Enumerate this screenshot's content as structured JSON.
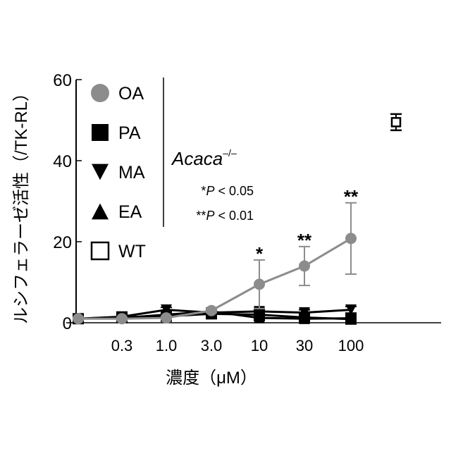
{
  "chart_data": {
    "type": "line",
    "ylabel": "ルシフェラーゼ活性（/TK-RL）",
    "xlabel": "濃度（μM）",
    "ylim": [
      0,
      60
    ],
    "yticks": [
      "0",
      "20",
      "40",
      "60"
    ],
    "x_ticks": [
      "0.3",
      "1.0",
      "3.0",
      "10",
      "30",
      "100"
    ],
    "x_positions": [
      "0",
      "0.3",
      "1.0",
      "3.0",
      "10",
      "30",
      "100"
    ],
    "x_scale": "log",
    "grid": false,
    "legend_position": "top-left",
    "series": [
      {
        "name": "OA",
        "marker": "circle-filled",
        "color": "#8c8c8c",
        "values": [
          1.0,
          1.0,
          1.2,
          3.0,
          9.5,
          14.0,
          20.8
        ],
        "errors": [
          0.3,
          0.3,
          0.4,
          0.5,
          6.0,
          4.8,
          8.8
        ]
      },
      {
        "name": "PA",
        "marker": "square-filled",
        "color": "#000000",
        "values": [
          1.0,
          1.4,
          1.6,
          2.2,
          2.0,
          1.3,
          0.9
        ],
        "errors": [
          0.3,
          0.4,
          0.4,
          0.5,
          1.5,
          0.9,
          0.5
        ]
      },
      {
        "name": "MA",
        "marker": "triangle-down",
        "color": "#000000",
        "values": [
          1.0,
          1.5,
          3.2,
          2.5,
          2.8,
          2.5,
          3.2
        ],
        "errors": [
          0.3,
          0.4,
          0.6,
          0.6,
          0.8,
          0.7,
          0.8
        ]
      },
      {
        "name": "EA",
        "marker": "triangle-up",
        "color": "#000000",
        "values": [
          1.0,
          1.2,
          2.0,
          2.8,
          1.2,
          1.0,
          1.1
        ],
        "errors": [
          0.3,
          0.3,
          0.5,
          0.5,
          0.4,
          0.3,
          0.4
        ]
      }
    ],
    "wt": {
      "name": "WT",
      "marker": "square-open",
      "value": 49.5,
      "error": 2.0
    },
    "significance": [
      {
        "label": "*",
        "x": "10"
      },
      {
        "label": "**",
        "x": "30"
      },
      {
        "label": "**",
        "x": "100"
      }
    ],
    "annotations": {
      "genotype": "Acaca",
      "genotype_superscript": "–/–",
      "p_values": [
        {
          "stars": "*",
          "p": "P",
          "text": " < 0.05"
        },
        {
          "stars": "**",
          "p": "P",
          "text": " < 0.01"
        }
      ]
    }
  }
}
